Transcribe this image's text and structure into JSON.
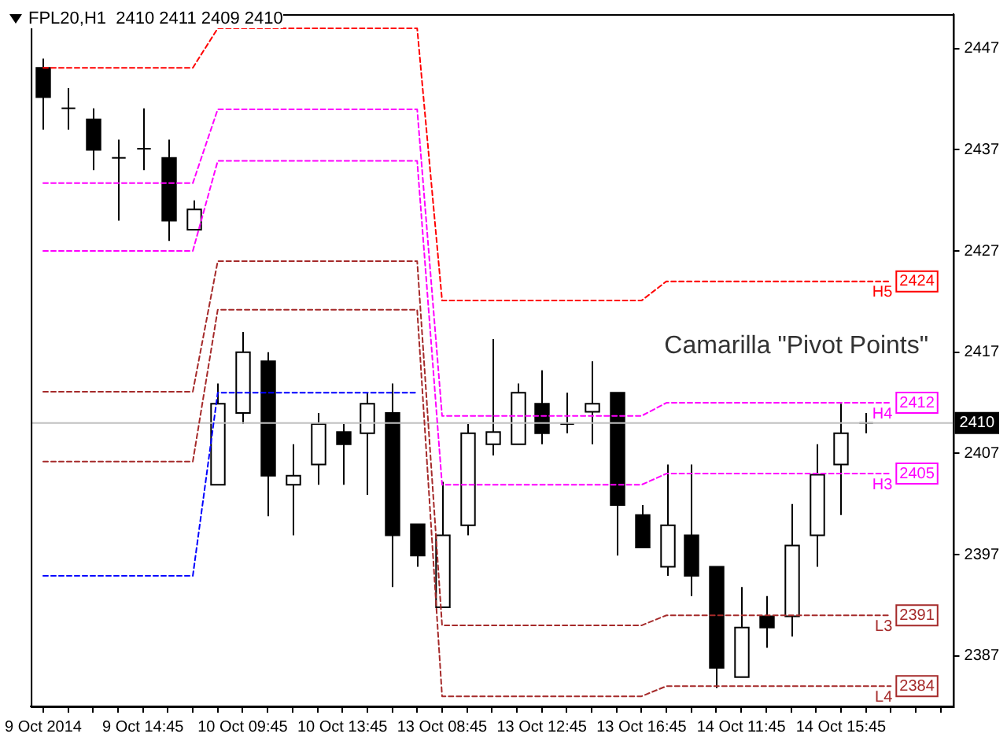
{
  "chart_data": {
    "type": "candlestick",
    "title": "FPL20,H1  2410 2411 2409 2410",
    "annotations": [
      "Camarilla \"Pivot Points\""
    ],
    "categories": [
      "9 Oct 2014",
      null,
      null,
      null,
      "9 Oct 14:45",
      null,
      null,
      null,
      "10 Oct 09:45",
      null,
      null,
      null,
      "10 Oct 13:45",
      null,
      null,
      null,
      "13 Oct 08:45",
      null,
      null,
      null,
      "13 Oct 12:45",
      null,
      null,
      null,
      "13 Oct 16:45",
      null,
      null,
      null,
      "14 Oct 11:45",
      null,
      null,
      null,
      "14 Oct 15:45",
      null,
      null,
      null,
      null
    ],
    "ohlc": [
      [
        2445.1,
        2446,
        2439,
        2442.2
      ],
      [
        2441.1,
        2443.1,
        2439,
        2441.1
      ],
      [
        2440,
        2441.1,
        2435,
        2437
      ],
      [
        2436.2,
        2438,
        2430,
        2436.2
      ],
      [
        2437.1,
        2441.1,
        2435,
        2437.1
      ],
      [
        2436.2,
        2438,
        2428,
        2430
      ],
      [
        2429.1,
        2432,
        2429.1,
        2431.1
      ],
      [
        2403.9,
        2413.9,
        2403.9,
        2411.9
      ],
      [
        2411,
        2419,
        2409.9,
        2417
      ],
      [
        2416.1,
        2417,
        2400.8,
        2404.8
      ],
      [
        2403.9,
        2407.9,
        2398.9,
        2404.8
      ],
      [
        2405.9,
        2411,
        2403.9,
        2409.9
      ],
      [
        2409.1,
        2409.9,
        2403.9,
        2407.9
      ],
      [
        2409,
        2413,
        2402.9,
        2411.9
      ],
      [
        2411,
        2413.9,
        2393.8,
        2398.9
      ],
      [
        2400,
        2400,
        2395.8,
        2396.9
      ],
      [
        2391.8,
        2404.2,
        2391.8,
        2398.9
      ],
      [
        2399.9,
        2409.9,
        2398.9,
        2409
      ],
      [
        2407.9,
        2418.3,
        2406.8,
        2409.1
      ],
      [
        2407.9,
        2413.9,
        2407.9,
        2413
      ],
      [
        2411.9,
        2415.2,
        2407.9,
        2409
      ],
      [
        2409.9,
        2413,
        2409,
        2409.9
      ],
      [
        2411.1,
        2416.1,
        2407.9,
        2411.9
      ],
      [
        2413,
        2413,
        2396.9,
        2401.9
      ],
      [
        2400.9,
        2401.9,
        2397.7,
        2397.7
      ],
      [
        2395.8,
        2405.9,
        2394.9,
        2399.9
      ],
      [
        2398.9,
        2405.9,
        2392.9,
        2394.9
      ],
      [
        2395.8,
        2395.8,
        2383.8,
        2385.8
      ],
      [
        2384.9,
        2393.8,
        2384.9,
        2389.8
      ],
      [
        2390.9,
        2392.9,
        2387.8,
        2389.8
      ],
      [
        2390.9,
        2402,
        2388.9,
        2397.9
      ],
      [
        2398.9,
        2407.9,
        2395.8,
        2404.9
      ],
      [
        2405.9,
        2411.9,
        2400.9,
        2409
      ],
      [
        2410,
        2411,
        2409,
        2410
      ],
      null,
      null,
      null
    ],
    "series": [
      {
        "type": "line",
        "name": "H5",
        "color": "#ff0000",
        "values": [
          2445.1,
          2445.1,
          2445.1,
          2445.1,
          2445.1,
          2445.1,
          2445.1,
          2449,
          2449,
          2449,
          2449,
          2449,
          2449,
          2449,
          2449,
          2449,
          2422.1,
          2422.1,
          2422.1,
          2422.1,
          2422.1,
          2422.1,
          2422.1,
          2422.1,
          2422.1,
          2424,
          2424,
          2424,
          2424,
          2424,
          2424,
          2424,
          2424,
          2424,
          2424,
          null,
          null
        ],
        "value_labels": [
          null,
          null,
          null,
          null,
          null,
          null,
          null,
          null,
          null,
          null,
          null,
          null,
          null,
          null,
          null,
          null,
          null,
          null,
          null,
          null,
          null,
          null,
          null,
          null,
          null,
          null,
          null,
          null,
          null,
          null,
          null,
          null,
          null,
          null,
          "2424",
          null,
          null
        ]
      },
      {
        "type": "line",
        "name": "H4",
        "color": "#ff00ff",
        "values": [
          2433.7,
          2433.7,
          2433.7,
          2433.7,
          2433.7,
          2433.7,
          2433.7,
          2441,
          2441,
          2441,
          2441,
          2441,
          2441,
          2441,
          2441,
          2441,
          2410.7,
          2410.7,
          2410.7,
          2410.7,
          2410.7,
          2410.7,
          2410.7,
          2410.7,
          2410.7,
          2412,
          2412,
          2412,
          2412,
          2412,
          2412,
          2412,
          2412,
          2412,
          2412,
          null,
          null
        ],
        "value_labels": [
          null,
          null,
          null,
          null,
          null,
          null,
          null,
          null,
          null,
          null,
          null,
          null,
          null,
          null,
          null,
          null,
          null,
          null,
          null,
          null,
          null,
          null,
          null,
          null,
          null,
          null,
          null,
          null,
          null,
          null,
          null,
          null,
          null,
          null,
          "2412",
          null,
          null
        ]
      },
      {
        "type": "line",
        "name": "H3",
        "color": "#ff00ff",
        "values": [
          2427,
          2427,
          2427,
          2427,
          2427,
          2427,
          2427,
          2435.9,
          2435.9,
          2435.9,
          2435.9,
          2435.9,
          2435.9,
          2435.9,
          2435.9,
          2435.9,
          2403.9,
          2403.9,
          2403.9,
          2403.9,
          2403.9,
          2403.9,
          2403.9,
          2403.9,
          2403.9,
          2405,
          2405,
          2405,
          2405,
          2405,
          2405,
          2405,
          2405,
          2405,
          2405,
          null,
          null
        ],
        "value_labels": [
          null,
          null,
          null,
          null,
          null,
          null,
          null,
          null,
          null,
          null,
          null,
          null,
          null,
          null,
          null,
          null,
          null,
          null,
          null,
          null,
          null,
          null,
          null,
          null,
          null,
          null,
          null,
          null,
          null,
          null,
          null,
          null,
          null,
          null,
          "2405",
          null,
          null
        ]
      },
      {
        "type": "line",
        "name": "L3",
        "color": "#a52a2a",
        "values": [
          2413.1,
          2413.1,
          2413.1,
          2413.1,
          2413.1,
          2413.1,
          2413.1,
          2426,
          2426,
          2426,
          2426,
          2426,
          2426,
          2426,
          2426,
          2426,
          2390,
          2390,
          2390,
          2390,
          2390,
          2390,
          2390,
          2390,
          2390,
          2391,
          2391,
          2391,
          2391,
          2391,
          2391,
          2391,
          2391,
          2391,
          2391,
          null,
          null
        ],
        "value_labels": [
          null,
          null,
          null,
          null,
          null,
          null,
          null,
          null,
          null,
          null,
          null,
          null,
          null,
          null,
          null,
          null,
          null,
          null,
          null,
          null,
          null,
          null,
          null,
          null,
          null,
          null,
          null,
          null,
          null,
          null,
          null,
          null,
          null,
          null,
          "2391",
          null,
          null
        ]
      },
      {
        "type": "line",
        "name": "L4",
        "color": "#a52a2a",
        "values": [
          2406.2,
          2406.2,
          2406.2,
          2406.2,
          2406.2,
          2406.2,
          2406.2,
          2421.2,
          2421.2,
          2421.2,
          2421.2,
          2421.2,
          2421.2,
          2421.2,
          2421.2,
          2421.2,
          2383,
          2383,
          2383,
          2383,
          2383,
          2383,
          2383,
          2383,
          2383,
          2384,
          2384,
          2384,
          2384,
          2384,
          2384,
          2384,
          2384,
          2384,
          2384,
          null,
          null
        ],
        "value_labels": [
          null,
          null,
          null,
          null,
          null,
          null,
          null,
          null,
          null,
          null,
          null,
          null,
          null,
          null,
          null,
          null,
          null,
          null,
          null,
          null,
          null,
          null,
          null,
          null,
          null,
          null,
          null,
          null,
          null,
          null,
          null,
          null,
          null,
          null,
          "2384",
          null,
          null
        ]
      },
      {
        "type": "line",
        "color": "#0000ff",
        "values": [
          2394.9,
          2394.9,
          2394.9,
          2394.9,
          2394.9,
          2394.9,
          2394.9,
          2413,
          2413,
          2413,
          2413,
          2413,
          2413,
          2413,
          2413,
          2413,
          null,
          null,
          null,
          null,
          null,
          null,
          null,
          null,
          null,
          null,
          null,
          null,
          null,
          null,
          null,
          null,
          null,
          null,
          null,
          null,
          null
        ]
      }
    ],
    "ylim": [
      2382,
      2450.4
    ],
    "yticks": [
      2387,
      2397,
      2407,
      2417,
      2427,
      2437,
      2447
    ],
    "ref_lines": [
      {
        "axis": "y",
        "value": 2410,
        "label": "2410",
        "color": "#c0c0c0"
      }
    ],
    "grid": false,
    "legend": false,
    "line_style": "dashed",
    "marker": "none"
  }
}
